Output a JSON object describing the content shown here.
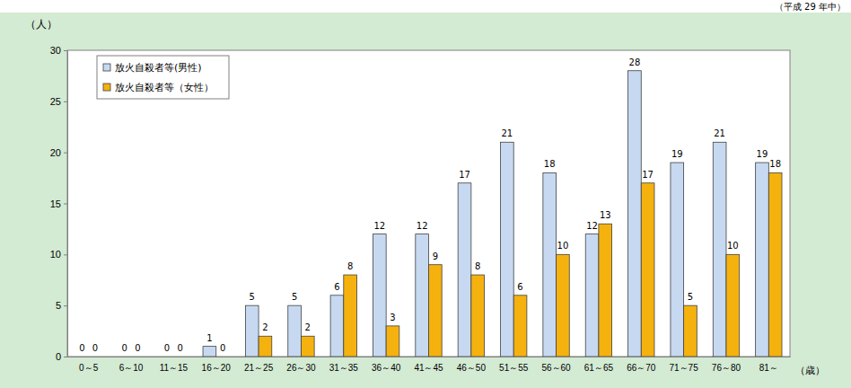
{
  "chart_data": {
    "type": "bar",
    "subtitle": "（平成 29 年中）",
    "y_label": "（人）",
    "x_label": "（歳）",
    "categories": [
      "0～5",
      "6～10",
      "11～15",
      "16～20",
      "21～25",
      "26～30",
      "31～35",
      "36～40",
      "41～45",
      "46～50",
      "51～55",
      "56～60",
      "61～65",
      "66～70",
      "71～75",
      "76～80",
      "81～"
    ],
    "series": [
      {
        "name": "放火自殺者等(男性)",
        "color": "#c6d9f1",
        "values": [
          0,
          0,
          0,
          1,
          5,
          5,
          6,
          12,
          12,
          17,
          21,
          18,
          12,
          28,
          19,
          21,
          19
        ]
      },
      {
        "name": "放火自殺者等（女性）",
        "color": "#f5b20f",
        "values": [
          0,
          0,
          0,
          0,
          2,
          2,
          8,
          3,
          9,
          8,
          6,
          10,
          13,
          17,
          5,
          10,
          18
        ]
      }
    ],
    "ylim": [
      0,
      30
    ],
    "yticks": [
      0,
      5,
      10,
      15,
      20,
      25,
      30
    ],
    "grid": false,
    "legend": "top-left",
    "data_labels": true
  }
}
